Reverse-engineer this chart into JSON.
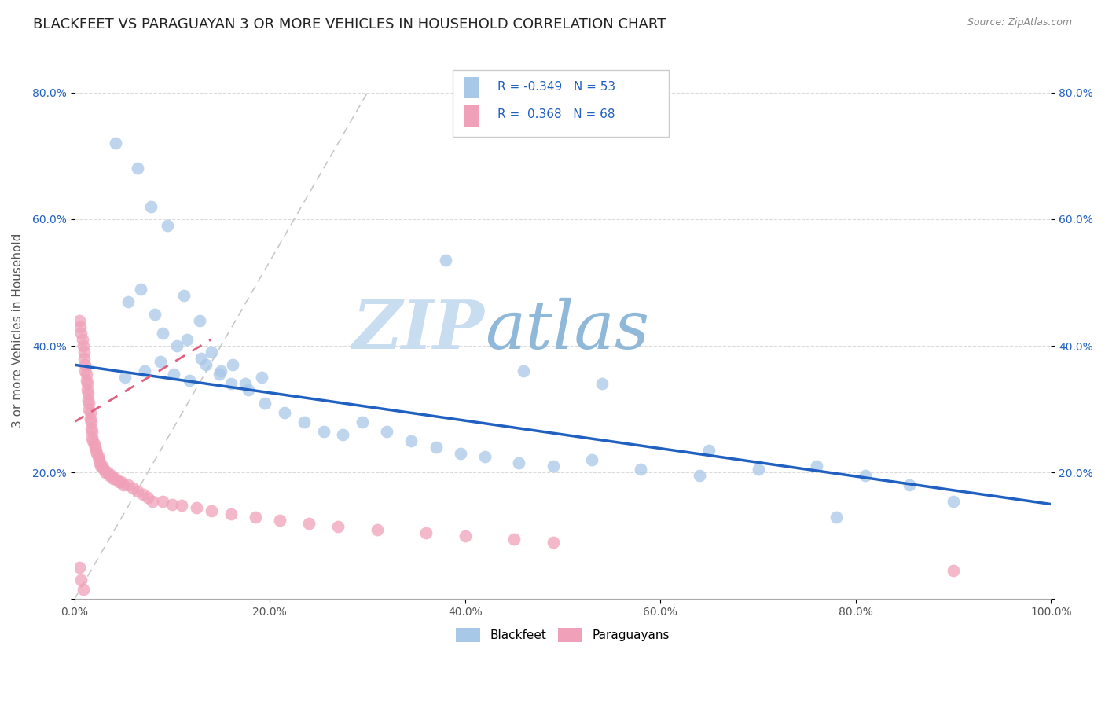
{
  "title": "BLACKFEET VS PARAGUAYAN 3 OR MORE VEHICLES IN HOUSEHOLD CORRELATION CHART",
  "source_text": "Source: ZipAtlas.com",
  "ylabel": "3 or more Vehicles in Household",
  "watermark_zip": "ZIP",
  "watermark_atlas": "atlas",
  "legend_blue_r": "-0.349",
  "legend_blue_n": "53",
  "legend_pink_r": "0.368",
  "legend_pink_n": "68",
  "blue_color": "#a8c8e8",
  "pink_color": "#f0a0b8",
  "blue_line_color": "#2060c0",
  "pink_line_color": "#e06080",
  "dashed_line_color": "#c8b0c0",
  "background_color": "#ffffff",
  "grid_color": "#cccccc",
  "title_color": "#222222",
  "xlim": [
    0.0,
    1.0
  ],
  "ylim": [
    0.0,
    0.85
  ],
  "blue_scatter_x": [
    0.042,
    0.065,
    0.078,
    0.095,
    0.112,
    0.128,
    0.055,
    0.068,
    0.082,
    0.09,
    0.105,
    0.115,
    0.13,
    0.14,
    0.15,
    0.162,
    0.175,
    0.192,
    0.052,
    0.072,
    0.088,
    0.102,
    0.118,
    0.135,
    0.148,
    0.16,
    0.178,
    0.195,
    0.215,
    0.235,
    0.255,
    0.275,
    0.295,
    0.32,
    0.345,
    0.37,
    0.395,
    0.42,
    0.455,
    0.49,
    0.53,
    0.58,
    0.64,
    0.7,
    0.76,
    0.81,
    0.855,
    0.9,
    0.38,
    0.46,
    0.54,
    0.65,
    0.78
  ],
  "blue_scatter_y": [
    0.72,
    0.68,
    0.62,
    0.59,
    0.48,
    0.44,
    0.47,
    0.49,
    0.45,
    0.42,
    0.4,
    0.41,
    0.38,
    0.39,
    0.36,
    0.37,
    0.34,
    0.35,
    0.35,
    0.36,
    0.375,
    0.355,
    0.345,
    0.37,
    0.355,
    0.34,
    0.33,
    0.31,
    0.295,
    0.28,
    0.265,
    0.26,
    0.28,
    0.265,
    0.25,
    0.24,
    0.23,
    0.225,
    0.215,
    0.21,
    0.22,
    0.205,
    0.195,
    0.205,
    0.21,
    0.195,
    0.18,
    0.155,
    0.535,
    0.36,
    0.34,
    0.235,
    0.13
  ],
  "pink_scatter_x": [
    0.005,
    0.006,
    0.007,
    0.008,
    0.009,
    0.01,
    0.01,
    0.011,
    0.011,
    0.012,
    0.012,
    0.013,
    0.013,
    0.014,
    0.014,
    0.015,
    0.015,
    0.016,
    0.016,
    0.017,
    0.017,
    0.018,
    0.018,
    0.019,
    0.02,
    0.021,
    0.022,
    0.023,
    0.024,
    0.025,
    0.026,
    0.027,
    0.028,
    0.03,
    0.032,
    0.034,
    0.036,
    0.038,
    0.04,
    0.042,
    0.045,
    0.048,
    0.05,
    0.055,
    0.06,
    0.065,
    0.07,
    0.075,
    0.08,
    0.09,
    0.1,
    0.11,
    0.125,
    0.14,
    0.16,
    0.185,
    0.21,
    0.24,
    0.27,
    0.31,
    0.36,
    0.4,
    0.45,
    0.49,
    0.005,
    0.007,
    0.009,
    0.9
  ],
  "pink_scatter_y": [
    0.44,
    0.43,
    0.42,
    0.41,
    0.4,
    0.39,
    0.38,
    0.37,
    0.36,
    0.355,
    0.345,
    0.34,
    0.33,
    0.325,
    0.315,
    0.31,
    0.3,
    0.295,
    0.285,
    0.28,
    0.27,
    0.265,
    0.255,
    0.25,
    0.245,
    0.24,
    0.235,
    0.23,
    0.225,
    0.22,
    0.215,
    0.21,
    0.21,
    0.205,
    0.2,
    0.2,
    0.195,
    0.195,
    0.19,
    0.19,
    0.185,
    0.185,
    0.18,
    0.18,
    0.175,
    0.17,
    0.165,
    0.16,
    0.155,
    0.155,
    0.15,
    0.148,
    0.145,
    0.14,
    0.135,
    0.13,
    0.125,
    0.12,
    0.115,
    0.11,
    0.105,
    0.1,
    0.095,
    0.09,
    0.05,
    0.03,
    0.015,
    0.045
  ]
}
